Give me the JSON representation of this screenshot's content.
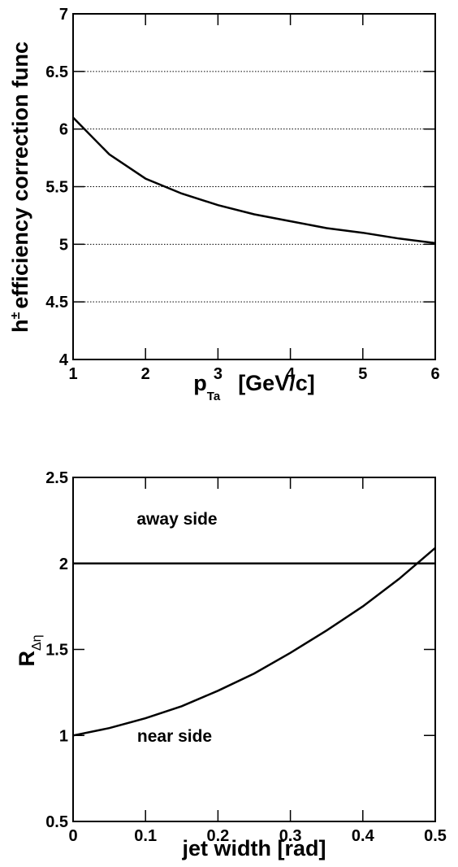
{
  "chart_data": [
    {
      "type": "line",
      "ylabel": {
        "base": "h",
        "sup": "±",
        "text": "efficiency correction func"
      },
      "xlabel": {
        "base": "p",
        "sub": "Ta",
        "text": "[GeV/c]"
      },
      "x": [
        1,
        1.5,
        2,
        2.5,
        3,
        3.5,
        4,
        4.5,
        5,
        5.5,
        6
      ],
      "series": [
        {
          "color": "#000000",
          "values": [
            6.1,
            5.78,
            5.57,
            5.44,
            5.34,
            5.26,
            5.2,
            5.14,
            5.1,
            5.05,
            5.01
          ]
        }
      ],
      "xlim": [
        1,
        6
      ],
      "xticks": [
        1,
        2,
        3,
        4,
        5,
        6
      ],
      "ylim": [
        4,
        7
      ],
      "yticks": [
        4,
        4.5,
        5,
        5.5,
        6,
        6.5,
        7
      ],
      "grid": true
    },
    {
      "type": "line",
      "ylabel": {
        "base": "R",
        "sub": "Δη"
      },
      "xlabel": {
        "text": "jet width  [rad]"
      },
      "x": [
        0,
        0.05,
        0.1,
        0.15,
        0.2,
        0.25,
        0.3,
        0.35,
        0.4,
        0.45,
        0.5
      ],
      "series": [
        {
          "name": "away side",
          "color": "#000000",
          "values": [
            2,
            2,
            2,
            2,
            2,
            2,
            2,
            2,
            2,
            2,
            2
          ]
        },
        {
          "name": "near side",
          "color": "#000000",
          "values": [
            1,
            1.043,
            1.1,
            1.17,
            1.26,
            1.36,
            1.48,
            1.61,
            1.75,
            1.91,
            2.09
          ]
        }
      ],
      "xlim": [
        0,
        0.5
      ],
      "xticks": [
        0,
        0.1,
        0.2,
        0.3,
        0.4,
        0.5
      ],
      "ylim": [
        0.5,
        2.5
      ],
      "yticks": [
        0.5,
        1,
        1.5,
        2,
        2.5
      ],
      "grid": false
    }
  ]
}
